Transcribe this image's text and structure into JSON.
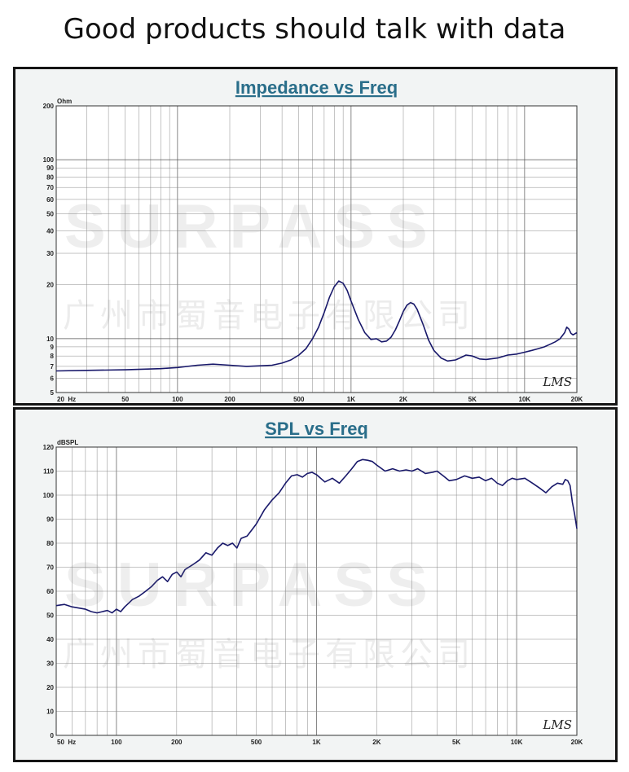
{
  "page": {
    "headline": "Good products should talk with data",
    "watermark_logo": "SURPASS",
    "watermark_company": "广州市蜀音电子有限公司"
  },
  "chart_data": [
    {
      "type": "line",
      "title": "Impedance vs Freq",
      "ylabel": "Ohm",
      "xlabel": "",
      "x_scale": "log",
      "y_scale": "log",
      "xlim": [
        20,
        20000
      ],
      "ylim": [
        5,
        200
      ],
      "grid": true,
      "corner_mark": "LMS",
      "x_ticks": [
        {
          "v": 20,
          "label": "20  Hz"
        },
        {
          "v": 50,
          "label": "50"
        },
        {
          "v": 100,
          "label": "100"
        },
        {
          "v": 200,
          "label": "200"
        },
        {
          "v": 500,
          "label": "500"
        },
        {
          "v": 1000,
          "label": "1K"
        },
        {
          "v": 2000,
          "label": "2K"
        },
        {
          "v": 5000,
          "label": "5K"
        },
        {
          "v": 10000,
          "label": "10K"
        },
        {
          "v": 20000,
          "label": "20K"
        }
      ],
      "y_ticks": [
        {
          "v": 5,
          "label": "5"
        },
        {
          "v": 6,
          "label": "6"
        },
        {
          "v": 7,
          "label": "7"
        },
        {
          "v": 8,
          "label": "8"
        },
        {
          "v": 9,
          "label": "9"
        },
        {
          "v": 10,
          "label": "10"
        },
        {
          "v": 20,
          "label": "20"
        },
        {
          "v": 30,
          "label": "30"
        },
        {
          "v": 40,
          "label": "40"
        },
        {
          "v": 50,
          "label": "50"
        },
        {
          "v": 60,
          "label": "60"
        },
        {
          "v": 70,
          "label": "70"
        },
        {
          "v": 80,
          "label": "80"
        },
        {
          "v": 90,
          "label": "90"
        },
        {
          "v": 100,
          "label": "100"
        },
        {
          "v": 200,
          "label": "200"
        }
      ],
      "series": [
        {
          "color": "#18186a",
          "points": [
            [
              20,
              6.6
            ],
            [
              30,
              6.65
            ],
            [
              50,
              6.7
            ],
            [
              80,
              6.8
            ],
            [
              100,
              6.9
            ],
            [
              130,
              7.1
            ],
            [
              160,
              7.2
            ],
            [
              200,
              7.1
            ],
            [
              250,
              7.0
            ],
            [
              300,
              7.05
            ],
            [
              350,
              7.1
            ],
            [
              400,
              7.3
            ],
            [
              450,
              7.6
            ],
            [
              500,
              8.1
            ],
            [
              550,
              8.8
            ],
            [
              600,
              10.0
            ],
            [
              650,
              11.6
            ],
            [
              700,
              14.0
            ],
            [
              750,
              17.0
            ],
            [
              800,
              19.5
            ],
            [
              850,
              21.0
            ],
            [
              900,
              20.4
            ],
            [
              950,
              18.6
            ],
            [
              1000,
              16.2
            ],
            [
              1100,
              12.8
            ],
            [
              1200,
              10.8
            ],
            [
              1300,
              9.9
            ],
            [
              1400,
              10.0
            ],
            [
              1500,
              9.6
            ],
            [
              1600,
              9.7
            ],
            [
              1700,
              10.2
            ],
            [
              1800,
              11.2
            ],
            [
              1900,
              12.6
            ],
            [
              2000,
              14.2
            ],
            [
              2100,
              15.4
            ],
            [
              2200,
              15.9
            ],
            [
              2300,
              15.6
            ],
            [
              2400,
              14.6
            ],
            [
              2600,
              12.0
            ],
            [
              2800,
              9.8
            ],
            [
              3000,
              8.6
            ],
            [
              3300,
              7.8
            ],
            [
              3600,
              7.5
            ],
            [
              4000,
              7.6
            ],
            [
              4300,
              7.85
            ],
            [
              4600,
              8.1
            ],
            [
              5000,
              8.0
            ],
            [
              5500,
              7.7
            ],
            [
              6000,
              7.65
            ],
            [
              7000,
              7.8
            ],
            [
              8000,
              8.1
            ],
            [
              9000,
              8.2
            ],
            [
              10000,
              8.4
            ],
            [
              11000,
              8.6
            ],
            [
              12000,
              8.8
            ],
            [
              13000,
              9.0
            ],
            [
              14000,
              9.3
            ],
            [
              15000,
              9.6
            ],
            [
              16000,
              10.0
            ],
            [
              17000,
              10.8
            ],
            [
              17500,
              11.6
            ],
            [
              18000,
              11.3
            ],
            [
              18500,
              10.7
            ],
            [
              19000,
              10.5
            ],
            [
              20000,
              10.8
            ]
          ]
        }
      ]
    },
    {
      "type": "line",
      "title": "SPL vs Freq",
      "ylabel": "dBSPL",
      "xlabel": "",
      "x_scale": "log",
      "y_scale": "linear",
      "xlim": [
        50,
        20000
      ],
      "ylim": [
        0,
        120
      ],
      "grid": true,
      "corner_mark": "LMS",
      "x_ticks": [
        {
          "v": 50,
          "label": "50  Hz"
        },
        {
          "v": 100,
          "label": "100"
        },
        {
          "v": 200,
          "label": "200"
        },
        {
          "v": 500,
          "label": "500"
        },
        {
          "v": 1000,
          "label": "1K"
        },
        {
          "v": 2000,
          "label": "2K"
        },
        {
          "v": 5000,
          "label": "5K"
        },
        {
          "v": 10000,
          "label": "10K"
        },
        {
          "v": 20000,
          "label": "20K"
        }
      ],
      "y_ticks": [
        {
          "v": 0,
          "label": "0"
        },
        {
          "v": 10,
          "label": "10"
        },
        {
          "v": 20,
          "label": "20"
        },
        {
          "v": 30,
          "label": "30"
        },
        {
          "v": 40,
          "label": "40"
        },
        {
          "v": 50,
          "label": "50"
        },
        {
          "v": 60,
          "label": "60"
        },
        {
          "v": 70,
          "label": "70"
        },
        {
          "v": 80,
          "label": "80"
        },
        {
          "v": 90,
          "label": "90"
        },
        {
          "v": 100,
          "label": "100"
        },
        {
          "v": 110,
          "label": "110"
        },
        {
          "v": 120,
          "label": "120"
        }
      ],
      "series": [
        {
          "color": "#18186a",
          "points": [
            [
              50,
              54
            ],
            [
              55,
              54.5
            ],
            [
              60,
              53.5
            ],
            [
              65,
              53
            ],
            [
              70,
              52.5
            ],
            [
              75,
              51.5
            ],
            [
              80,
              51
            ],
            [
              85,
              51.5
            ],
            [
              90,
              52
            ],
            [
              95,
              51
            ],
            [
              100,
              52.5
            ],
            [
              105,
              51.5
            ],
            [
              110,
              53.5
            ],
            [
              115,
              55
            ],
            [
              120,
              56.5
            ],
            [
              130,
              58
            ],
            [
              140,
              60
            ],
            [
              150,
              62
            ],
            [
              160,
              64.5
            ],
            [
              170,
              66
            ],
            [
              180,
              64
            ],
            [
              190,
              67
            ],
            [
              200,
              68
            ],
            [
              210,
              66
            ],
            [
              220,
              69
            ],
            [
              240,
              71
            ],
            [
              260,
              73
            ],
            [
              280,
              76
            ],
            [
              300,
              75
            ],
            [
              320,
              78
            ],
            [
              340,
              80
            ],
            [
              360,
              79
            ],
            [
              380,
              80
            ],
            [
              400,
              78
            ],
            [
              420,
              82
            ],
            [
              450,
              83
            ],
            [
              480,
              86
            ],
            [
              500,
              88
            ],
            [
              550,
              94
            ],
            [
              600,
              98
            ],
            [
              650,
              101
            ],
            [
              700,
              105
            ],
            [
              750,
              108
            ],
            [
              800,
              108.5
            ],
            [
              850,
              107.5
            ],
            [
              900,
              109
            ],
            [
              950,
              109.5
            ],
            [
              1000,
              108.5
            ],
            [
              1100,
              105.5
            ],
            [
              1200,
              107
            ],
            [
              1300,
              105
            ],
            [
              1400,
              108
            ],
            [
              1500,
              111
            ],
            [
              1600,
              114
            ],
            [
              1700,
              114.8
            ],
            [
              1800,
              114.5
            ],
            [
              1900,
              114
            ],
            [
              2000,
              112.5
            ],
            [
              2200,
              110
            ],
            [
              2400,
              111
            ],
            [
              2600,
              110
            ],
            [
              2800,
              110.5
            ],
            [
              3000,
              110
            ],
            [
              3200,
              111
            ],
            [
              3500,
              109
            ],
            [
              3800,
              109.5
            ],
            [
              4000,
              110
            ],
            [
              4300,
              108
            ],
            [
              4600,
              106
            ],
            [
              5000,
              106.5
            ],
            [
              5500,
              108
            ],
            [
              6000,
              107
            ],
            [
              6500,
              107.5
            ],
            [
              7000,
              106
            ],
            [
              7500,
              107
            ],
            [
              8000,
              105
            ],
            [
              8500,
              104
            ],
            [
              9000,
              106
            ],
            [
              9500,
              107
            ],
            [
              10000,
              106.5
            ],
            [
              11000,
              107
            ],
            [
              12000,
              105
            ],
            [
              13000,
              103
            ],
            [
              14000,
              101
            ],
            [
              15000,
              103.5
            ],
            [
              16000,
              105
            ],
            [
              17000,
              104.5
            ],
            [
              17500,
              106.5
            ],
            [
              18000,
              106
            ],
            [
              18500,
              104
            ],
            [
              19000,
              97
            ],
            [
              19500,
              92
            ],
            [
              20000,
              86
            ]
          ]
        }
      ]
    }
  ]
}
